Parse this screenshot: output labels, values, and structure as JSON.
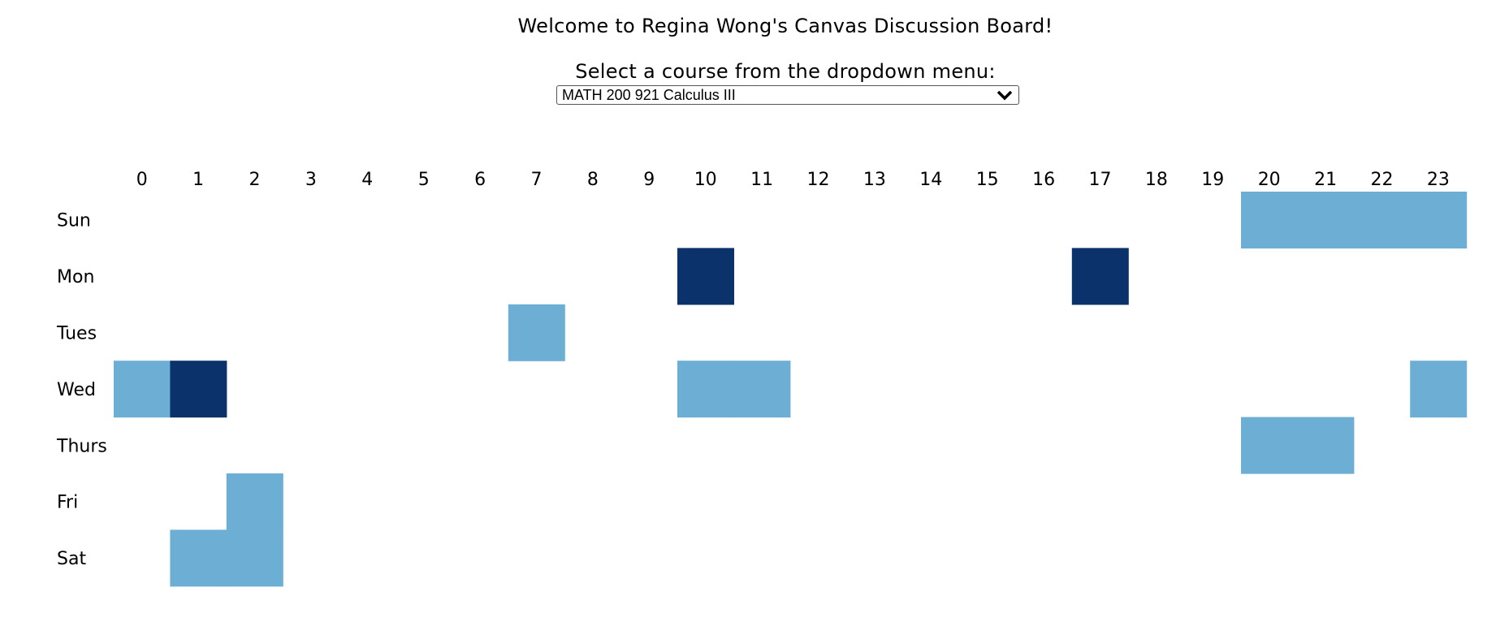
{
  "page": {
    "title": "Welcome to Regina Wong's Canvas Discussion Board!",
    "prompt": "Select a course from the dropdown menu:"
  },
  "course_select": {
    "selected": "MATH 200 921 Calculus III",
    "icon": "chevron-down-icon"
  },
  "colors": {
    "light": "#6dafd4",
    "dark": "#0c326b",
    "empty": "#ffffff"
  },
  "chart_data": {
    "type": "heatmap",
    "x": [
      "0",
      "1",
      "2",
      "3",
      "4",
      "5",
      "6",
      "7",
      "8",
      "9",
      "10",
      "11",
      "12",
      "13",
      "14",
      "15",
      "16",
      "17",
      "18",
      "19",
      "20",
      "21",
      "22",
      "23"
    ],
    "y": [
      "Sun",
      "Mon",
      "Tues",
      "Wed",
      "Thurs",
      "Fri",
      "Sat"
    ],
    "cells": [
      {
        "day": "Sun",
        "hour": 20,
        "level": "light"
      },
      {
        "day": "Sun",
        "hour": 21,
        "level": "light"
      },
      {
        "day": "Sun",
        "hour": 22,
        "level": "light"
      },
      {
        "day": "Sun",
        "hour": 23,
        "level": "light"
      },
      {
        "day": "Mon",
        "hour": 10,
        "level": "dark"
      },
      {
        "day": "Mon",
        "hour": 17,
        "level": "dark"
      },
      {
        "day": "Tues",
        "hour": 7,
        "level": "light"
      },
      {
        "day": "Wed",
        "hour": 0,
        "level": "light"
      },
      {
        "day": "Wed",
        "hour": 1,
        "level": "dark"
      },
      {
        "day": "Wed",
        "hour": 10,
        "level": "light"
      },
      {
        "day": "Wed",
        "hour": 11,
        "level": "light"
      },
      {
        "day": "Wed",
        "hour": 23,
        "level": "light"
      },
      {
        "day": "Thurs",
        "hour": 20,
        "level": "light"
      },
      {
        "day": "Thurs",
        "hour": 21,
        "level": "light"
      },
      {
        "day": "Fri",
        "hour": 2,
        "level": "light"
      },
      {
        "day": "Sat",
        "hour": 1,
        "level": "light"
      },
      {
        "day": "Sat",
        "hour": 2,
        "level": "light"
      }
    ]
  }
}
